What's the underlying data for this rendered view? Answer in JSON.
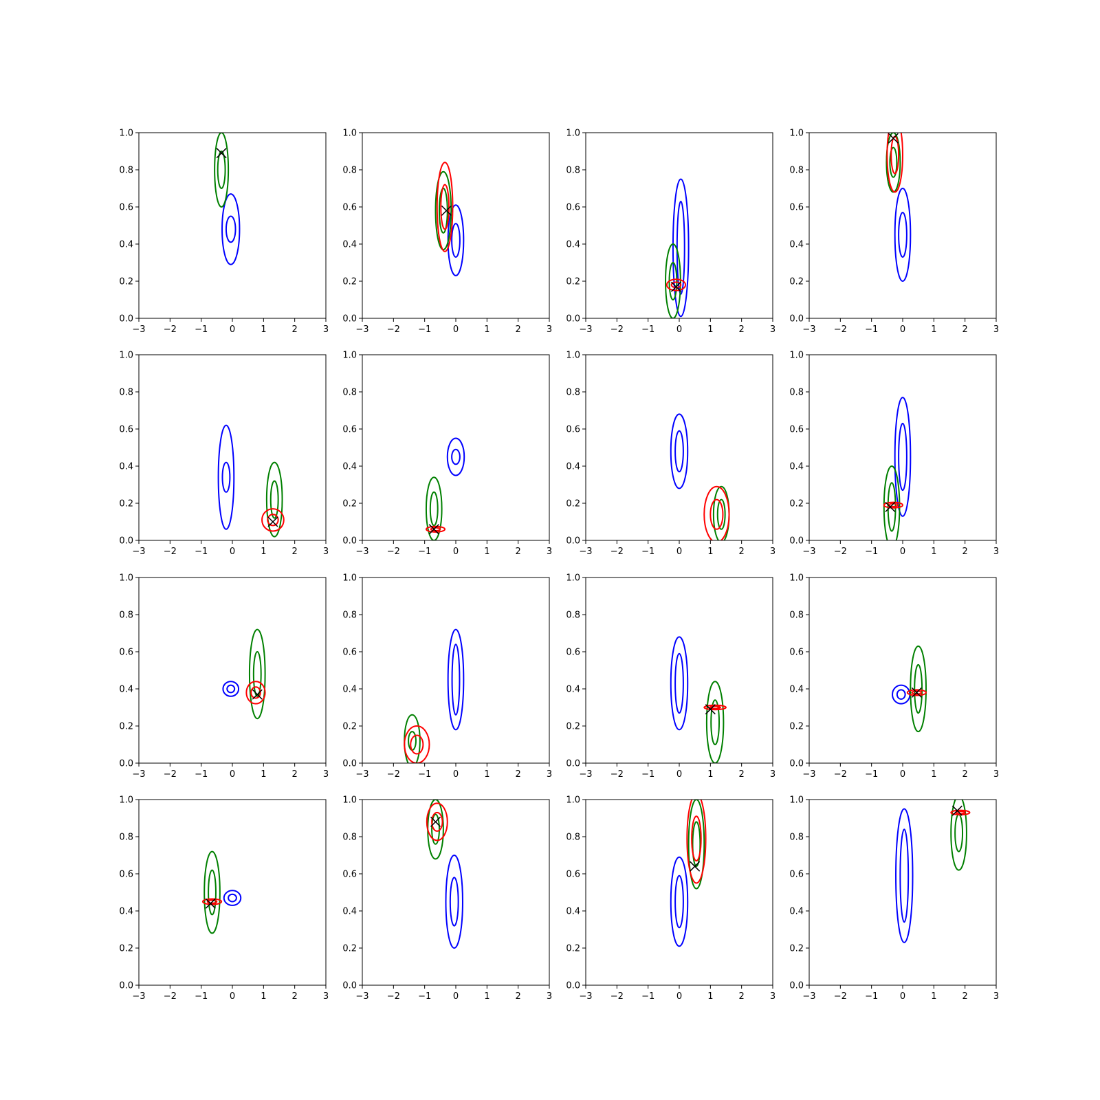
{
  "figure": {
    "grid_rows": 4,
    "grid_cols": 4,
    "x_ticks": [
      -3,
      -2,
      -1,
      0,
      1,
      2,
      3
    ],
    "y_ticks": [
      0.0,
      0.2,
      0.4,
      0.6,
      0.8,
      1.0
    ],
    "colors": {
      "blue": "#0000ff",
      "green": "#008000",
      "red": "#ff0000",
      "marker": "#000000"
    }
  },
  "chart_data": [
    {
      "type": "contour",
      "xlim": [
        -3,
        3
      ],
      "ylim": [
        0,
        1
      ],
      "grid": false,
      "contours": [
        {
          "color": "blue",
          "cx": -0.05,
          "cy": 0.48,
          "rx_outer": 0.28,
          "ry_outer": 0.19,
          "rx_inner": 0.15,
          "ry_inner": 0.07
        },
        {
          "color": "green",
          "cx": -0.35,
          "cy": 0.8,
          "rx_outer": 0.22,
          "ry_outer": 0.2,
          "rx_inner": 0.12,
          "ry_inner": 0.1
        }
      ],
      "markers": [
        {
          "x": -0.35,
          "y": 0.89
        }
      ]
    },
    {
      "type": "contour",
      "xlim": [
        -3,
        3
      ],
      "ylim": [
        0,
        1
      ],
      "grid": false,
      "contours": [
        {
          "color": "blue",
          "cx": 0.0,
          "cy": 0.42,
          "rx_outer": 0.25,
          "ry_outer": 0.19,
          "rx_inner": 0.13,
          "ry_inner": 0.09
        },
        {
          "color": "green",
          "cx": -0.4,
          "cy": 0.58,
          "rx_outer": 0.25,
          "ry_outer": 0.21,
          "rx_inner": 0.13,
          "ry_inner": 0.12
        },
        {
          "color": "red",
          "cx": -0.35,
          "cy": 0.6,
          "rx_outer": 0.25,
          "ry_outer": 0.24,
          "rx_inner": 0.13,
          "ry_inner": 0.12
        }
      ],
      "markers": [
        {
          "x": -0.3,
          "y": 0.58
        }
      ]
    },
    {
      "type": "contour",
      "xlim": [
        -3,
        3
      ],
      "ylim": [
        0,
        1
      ],
      "grid": false,
      "contours": [
        {
          "color": "blue",
          "cx": 0.05,
          "cy": 0.38,
          "rx_outer": 0.25,
          "ry_outer": 0.37,
          "rx_inner": 0.12,
          "ry_inner": 0.25
        },
        {
          "color": "green",
          "cx": -0.2,
          "cy": 0.2,
          "rx_outer": 0.24,
          "ry_outer": 0.2,
          "rx_inner": 0.12,
          "ry_inner": 0.1
        },
        {
          "color": "red",
          "cx": -0.1,
          "cy": 0.18,
          "rx_outer": 0.3,
          "ry_outer": 0.03,
          "rx_inner": 0.15,
          "ry_inner": 0.015
        }
      ],
      "markers": [
        {
          "x": -0.1,
          "y": 0.17
        }
      ]
    },
    {
      "type": "contour",
      "xlim": [
        -3,
        3
      ],
      "ylim": [
        0,
        1
      ],
      "grid": false,
      "contours": [
        {
          "color": "blue",
          "cx": 0.0,
          "cy": 0.45,
          "rx_outer": 0.25,
          "ry_outer": 0.25,
          "rx_inner": 0.13,
          "ry_inner": 0.12
        },
        {
          "color": "green",
          "cx": -0.3,
          "cy": 0.84,
          "rx_outer": 0.22,
          "ry_outer": 0.16,
          "rx_inner": 0.11,
          "ry_inner": 0.08
        },
        {
          "color": "red",
          "cx": -0.25,
          "cy": 0.88,
          "rx_outer": 0.25,
          "ry_outer": 0.2,
          "rx_inner": 0.12,
          "ry_inner": 0.1
        }
      ],
      "markers": [
        {
          "x": -0.3,
          "y": 0.97
        }
      ]
    },
    {
      "type": "contour",
      "xlim": [
        -3,
        3
      ],
      "ylim": [
        0,
        1
      ],
      "grid": false,
      "contours": [
        {
          "color": "blue",
          "cx": -0.2,
          "cy": 0.34,
          "rx_outer": 0.25,
          "ry_outer": 0.28,
          "rx_inner": 0.12,
          "ry_inner": 0.08
        },
        {
          "color": "green",
          "cx": 1.35,
          "cy": 0.22,
          "rx_outer": 0.25,
          "ry_outer": 0.2,
          "rx_inner": 0.12,
          "ry_inner": 0.1
        },
        {
          "color": "red",
          "cx": 1.3,
          "cy": 0.11,
          "rx_outer": 0.35,
          "ry_outer": 0.06,
          "rx_inner": 0.17,
          "ry_inner": 0.03
        }
      ],
      "markers": [
        {
          "x": 1.3,
          "y": 0.1
        }
      ]
    },
    {
      "type": "contour",
      "xlim": [
        -3,
        3
      ],
      "ylim": [
        0,
        1
      ],
      "grid": false,
      "contours": [
        {
          "color": "blue",
          "cx": 0.0,
          "cy": 0.45,
          "rx_outer": 0.27,
          "ry_outer": 0.1,
          "rx_inner": 0.13,
          "ry_inner": 0.04
        },
        {
          "color": "green",
          "cx": -0.7,
          "cy": 0.17,
          "rx_outer": 0.25,
          "ry_outer": 0.17,
          "rx_inner": 0.12,
          "ry_inner": 0.09
        },
        {
          "color": "red",
          "cx": -0.65,
          "cy": 0.06,
          "rx_outer": 0.3,
          "ry_outer": 0.015,
          "rx_inner": 0.15,
          "ry_inner": 0.008
        }
      ],
      "markers": [
        {
          "x": -0.7,
          "y": 0.06
        }
      ]
    },
    {
      "type": "contour",
      "xlim": [
        -3,
        3
      ],
      "ylim": [
        0,
        1
      ],
      "grid": false,
      "contours": [
        {
          "color": "blue",
          "cx": 0.0,
          "cy": 0.48,
          "rx_outer": 0.27,
          "ry_outer": 0.2,
          "rx_inner": 0.13,
          "ry_inner": 0.11
        },
        {
          "color": "green",
          "cx": 1.35,
          "cy": 0.14,
          "rx_outer": 0.25,
          "ry_outer": 0.15,
          "rx_inner": 0.12,
          "ry_inner": 0.08
        },
        {
          "color": "red",
          "cx": 1.2,
          "cy": 0.14,
          "rx_outer": 0.4,
          "ry_outer": 0.15,
          "rx_inner": 0.2,
          "ry_inner": 0.08
        }
      ],
      "markers": []
    },
    {
      "type": "contour",
      "xlim": [
        -3,
        3
      ],
      "ylim": [
        0,
        1
      ],
      "grid": false,
      "contours": [
        {
          "color": "blue",
          "cx": 0.0,
          "cy": 0.45,
          "rx_outer": 0.25,
          "ry_outer": 0.32,
          "rx_inner": 0.13,
          "ry_inner": 0.18
        },
        {
          "color": "green",
          "cx": -0.35,
          "cy": 0.18,
          "rx_outer": 0.25,
          "ry_outer": 0.22,
          "rx_inner": 0.12,
          "ry_inner": 0.13
        },
        {
          "color": "red",
          "cx": -0.3,
          "cy": 0.19,
          "rx_outer": 0.3,
          "ry_outer": 0.015,
          "rx_inner": 0.15,
          "ry_inner": 0.008
        }
      ],
      "markers": [
        {
          "x": -0.4,
          "y": 0.18
        }
      ]
    },
    {
      "type": "contour",
      "xlim": [
        -3,
        3
      ],
      "ylim": [
        0,
        1
      ],
      "grid": false,
      "contours": [
        {
          "color": "blue",
          "cx": -0.05,
          "cy": 0.4,
          "rx_outer": 0.25,
          "ry_outer": 0.04,
          "rx_inner": 0.12,
          "ry_inner": 0.02
        },
        {
          "color": "green",
          "cx": 0.8,
          "cy": 0.48,
          "rx_outer": 0.25,
          "ry_outer": 0.24,
          "rx_inner": 0.12,
          "ry_inner": 0.12
        },
        {
          "color": "red",
          "cx": 0.75,
          "cy": 0.38,
          "rx_outer": 0.3,
          "ry_outer": 0.06,
          "rx_inner": 0.15,
          "ry_inner": 0.03
        }
      ],
      "markers": [
        {
          "x": 0.8,
          "y": 0.37
        }
      ]
    },
    {
      "type": "contour",
      "xlim": [
        -3,
        3
      ],
      "ylim": [
        0,
        1
      ],
      "grid": false,
      "contours": [
        {
          "color": "blue",
          "cx": 0.0,
          "cy": 0.45,
          "rx_outer": 0.25,
          "ry_outer": 0.27,
          "rx_inner": 0.12,
          "ry_inner": 0.19
        },
        {
          "color": "green",
          "cx": -1.4,
          "cy": 0.12,
          "rx_outer": 0.25,
          "ry_outer": 0.14,
          "rx_inner": 0.12,
          "ry_inner": 0.05
        },
        {
          "color": "red",
          "cx": -1.25,
          "cy": 0.1,
          "rx_outer": 0.4,
          "ry_outer": 0.1,
          "rx_inner": 0.2,
          "ry_inner": 0.05
        }
      ],
      "markers": []
    },
    {
      "type": "contour",
      "xlim": [
        -3,
        3
      ],
      "ylim": [
        0,
        1
      ],
      "grid": false,
      "contours": [
        {
          "color": "blue",
          "cx": 0.0,
          "cy": 0.43,
          "rx_outer": 0.27,
          "ry_outer": 0.25,
          "rx_inner": 0.13,
          "ry_inner": 0.16
        },
        {
          "color": "green",
          "cx": 1.15,
          "cy": 0.22,
          "rx_outer": 0.27,
          "ry_outer": 0.22,
          "rx_inner": 0.13,
          "ry_inner": 0.12
        },
        {
          "color": "red",
          "cx": 1.15,
          "cy": 0.3,
          "rx_outer": 0.35,
          "ry_outer": 0.012,
          "rx_inner": 0.17,
          "ry_inner": 0.006
        }
      ],
      "markers": [
        {
          "x": 1.0,
          "y": 0.29
        }
      ]
    },
    {
      "type": "contour",
      "xlim": [
        -3,
        3
      ],
      "ylim": [
        0,
        1
      ],
      "grid": false,
      "contours": [
        {
          "color": "blue",
          "cx": -0.05,
          "cy": 0.37,
          "rx_outer": 0.28,
          "ry_outer": 0.05,
          "rx_inner": 0.13,
          "ry_inner": 0.025
        },
        {
          "color": "green",
          "cx": 0.5,
          "cy": 0.4,
          "rx_outer": 0.25,
          "ry_outer": 0.23,
          "rx_inner": 0.12,
          "ry_inner": 0.13
        },
        {
          "color": "red",
          "cx": 0.45,
          "cy": 0.38,
          "rx_outer": 0.3,
          "ry_outer": 0.015,
          "rx_inner": 0.15,
          "ry_inner": 0.008
        }
      ],
      "markers": [
        {
          "x": 0.45,
          "y": 0.38
        }
      ]
    },
    {
      "type": "contour",
      "xlim": [
        -3,
        3
      ],
      "ylim": [
        0,
        1
      ],
      "grid": false,
      "contours": [
        {
          "color": "blue",
          "cx": 0.0,
          "cy": 0.47,
          "rx_outer": 0.27,
          "ry_outer": 0.04,
          "rx_inner": 0.13,
          "ry_inner": 0.02
        },
        {
          "color": "green",
          "cx": -0.65,
          "cy": 0.5,
          "rx_outer": 0.25,
          "ry_outer": 0.22,
          "rx_inner": 0.12,
          "ry_inner": 0.12
        },
        {
          "color": "red",
          "cx": -0.65,
          "cy": 0.45,
          "rx_outer": 0.3,
          "ry_outer": 0.015,
          "rx_inner": 0.15,
          "ry_inner": 0.008
        }
      ],
      "markers": [
        {
          "x": -0.7,
          "y": 0.44
        }
      ]
    },
    {
      "type": "contour",
      "xlim": [
        -3,
        3
      ],
      "ylim": [
        0,
        1
      ],
      "grid": false,
      "contours": [
        {
          "color": "blue",
          "cx": -0.05,
          "cy": 0.45,
          "rx_outer": 0.27,
          "ry_outer": 0.25,
          "rx_inner": 0.13,
          "ry_inner": 0.13
        },
        {
          "color": "green",
          "cx": -0.65,
          "cy": 0.84,
          "rx_outer": 0.25,
          "ry_outer": 0.16,
          "rx_inner": 0.12,
          "ry_inner": 0.08
        },
        {
          "color": "red",
          "cx": -0.6,
          "cy": 0.88,
          "rx_outer": 0.33,
          "ry_outer": 0.1,
          "rx_inner": 0.17,
          "ry_inner": 0.05
        }
      ],
      "markers": [
        {
          "x": -0.65,
          "y": 0.88
        }
      ]
    },
    {
      "type": "contour",
      "xlim": [
        -3,
        3
      ],
      "ylim": [
        0,
        1
      ],
      "grid": false,
      "contours": [
        {
          "color": "blue",
          "cx": 0.0,
          "cy": 0.45,
          "rx_outer": 0.27,
          "ry_outer": 0.24,
          "rx_inner": 0.13,
          "ry_inner": 0.14
        },
        {
          "color": "green",
          "cx": 0.55,
          "cy": 0.76,
          "rx_outer": 0.25,
          "ry_outer": 0.24,
          "rx_inner": 0.12,
          "ry_inner": 0.12
        },
        {
          "color": "red",
          "cx": 0.55,
          "cy": 0.79,
          "rx_outer": 0.3,
          "ry_outer": 0.24,
          "rx_inner": 0.15,
          "ry_inner": 0.12
        }
      ],
      "markers": [
        {
          "x": 0.5,
          "y": 0.64
        }
      ]
    },
    {
      "type": "contour",
      "xlim": [
        -3,
        3
      ],
      "ylim": [
        0,
        1
      ],
      "grid": false,
      "contours": [
        {
          "color": "blue",
          "cx": 0.05,
          "cy": 0.59,
          "rx_outer": 0.27,
          "ry_outer": 0.36,
          "rx_inner": 0.13,
          "ry_inner": 0.25
        },
        {
          "color": "green",
          "cx": 1.8,
          "cy": 0.82,
          "rx_outer": 0.25,
          "ry_outer": 0.2,
          "rx_inner": 0.12,
          "ry_inner": 0.1
        },
        {
          "color": "red",
          "cx": 1.85,
          "cy": 0.93,
          "rx_outer": 0.3,
          "ry_outer": 0.012,
          "rx_inner": 0.15,
          "ry_inner": 0.006
        }
      ],
      "markers": [
        {
          "x": 1.75,
          "y": 0.94
        }
      ]
    }
  ]
}
